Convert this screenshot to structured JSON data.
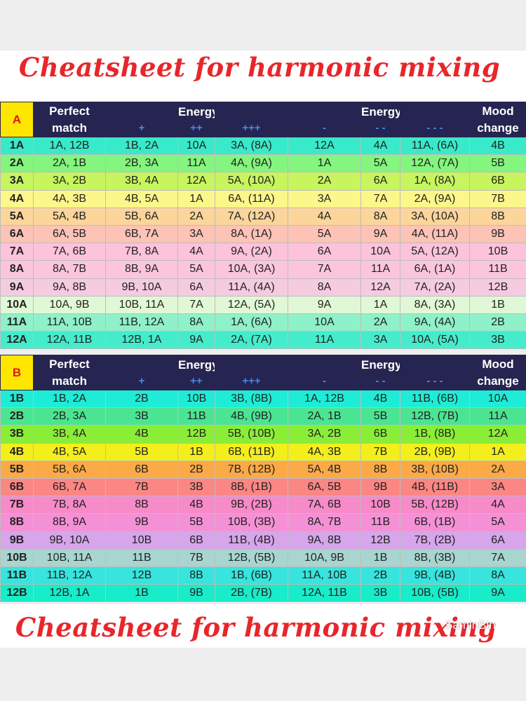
{
  "title_top": "Cheatsheet for harmonic mixing",
  "title_bottom": "Cheatsheet for harmonic mixing",
  "watermark": "SaminBin",
  "headers": {
    "perfect": [
      "Perfect",
      "match"
    ],
    "energy_boost": "Energy boost",
    "energy_drop": "Energy drop",
    "mood": [
      "Mood",
      "change"
    ],
    "boost_symbols": [
      "+",
      "++",
      "+++"
    ],
    "drop_symbols": [
      "-",
      "- -",
      "- - -"
    ]
  },
  "section_a": {
    "label": "A",
    "rows": [
      {
        "key": "1A",
        "perfect": "1A, 12B",
        "b1": "1B, 2A",
        "b2": "10A",
        "b3": "3A, (8A)",
        "d1": "12A",
        "d2": "4A",
        "d3": "11A, (6A)",
        "mood": "4B",
        "color": "#38eac9"
      },
      {
        "key": "2A",
        "perfect": "2A, 1B",
        "b1": "2B, 3A",
        "b2": "11A",
        "b3": "4A, (9A)",
        "d1": "1A",
        "d2": "5A",
        "d3": "12A, (7A)",
        "mood": "5B",
        "color": "#84f57e"
      },
      {
        "key": "3A",
        "perfect": "3A, 2B",
        "b1": "3B, 4A",
        "b2": "12A",
        "b3": "5A, (10A)",
        "d1": "2A",
        "d2": "6A",
        "d3": "1A, (8A)",
        "mood": "6B",
        "color": "#c6f55e"
      },
      {
        "key": "4A",
        "perfect": "4A, 3B",
        "b1": "4B, 5A",
        "b2": "1A",
        "b3": "6A, (11A)",
        "d1": "3A",
        "d2": "7A",
        "d3": "2A, (9A)",
        "mood": "7B",
        "color": "#fbf78a"
      },
      {
        "key": "5A",
        "perfect": "5A, 4B",
        "b1": "5B, 6A",
        "b2": "2A",
        "b3": "7A, (12A)",
        "d1": "4A",
        "d2": "8A",
        "d3": "3A, (10A)",
        "mood": "8B",
        "color": "#fbd59a"
      },
      {
        "key": "6A",
        "perfect": "6A, 5B",
        "b1": "6B, 7A",
        "b2": "3A",
        "b3": "8A, (1A)",
        "d1": "5A",
        "d2": "9A",
        "d3": "4A, (11A)",
        "mood": "9B",
        "color": "#fcc3b6"
      },
      {
        "key": "7A",
        "perfect": "7A, 6B",
        "b1": "7B, 8A",
        "b2": "4A",
        "b3": "9A, (2A)",
        "d1": "6A",
        "d2": "10A",
        "d3": "5A, (12A)",
        "mood": "10B",
        "color": "#fcc3da"
      },
      {
        "key": "8A",
        "perfect": "8A, 7B",
        "b1": "8B, 9A",
        "b2": "5A",
        "b3": "10A, (3A)",
        "d1": "7A",
        "d2": "11A",
        "d3": "6A, (1A)",
        "mood": "11B",
        "color": "#fbc6dc"
      },
      {
        "key": "9A",
        "perfect": "9A, 8B",
        "b1": "9B, 10A",
        "b2": "6A",
        "b3": "11A, (4A)",
        "d1": "8A",
        "d2": "12A",
        "d3": "7A, (2A)",
        "mood": "12B",
        "color": "#f5cbe0"
      },
      {
        "key": "10A",
        "perfect": "10A, 9B",
        "b1": "10B, 11A",
        "b2": "7A",
        "b3": "12A, (5A)",
        "d1": "9A",
        "d2": "1A",
        "d3": "8A, (3A)",
        "mood": "1B",
        "color": "#e1f8d6"
      },
      {
        "key": "11A",
        "perfect": "11A, 10B",
        "b1": "11B, 12A",
        "b2": "8A",
        "b3": "1A, (6A)",
        "d1": "10A",
        "d2": "2A",
        "d3": "9A, (4A)",
        "mood": "2B",
        "color": "#8ff1c9"
      },
      {
        "key": "12A",
        "perfect": "12A, 11B",
        "b1": "12B, 1A",
        "b2": "9A",
        "b3": "2A, (7A)",
        "d1": "11A",
        "d2": "3A",
        "d3": "10A, (5A)",
        "mood": "3B",
        "color": "#45eccc"
      }
    ]
  },
  "section_b": {
    "label": "B",
    "rows": [
      {
        "key": "1B",
        "perfect": "1B, 2A",
        "b1": "2B",
        "b2": "10B",
        "b3": "3B, (8B)",
        "d1": "1A, 12B",
        "d2": "4B",
        "d3": "11B, (6B)",
        "mood": "10A",
        "color": "#1fecd6"
      },
      {
        "key": "2B",
        "perfect": "2B, 3A",
        "b1": "3B",
        "b2": "11B",
        "b3": "4B, (9B)",
        "d1": "2A, 1B",
        "d2": "5B",
        "d3": "12B, (7B)",
        "mood": "11A",
        "color": "#4ae592"
      },
      {
        "key": "3B",
        "perfect": "3B, 4A",
        "b1": "4B",
        "b2": "12B",
        "b3": "5B, (10B)",
        "d1": "3A, 2B",
        "d2": "6B",
        "d3": "1B, (8B)",
        "mood": "12A",
        "color": "#8aee37"
      },
      {
        "key": "4B",
        "perfect": "4B, 5A",
        "b1": "5B",
        "b2": "1B",
        "b3": "6B, (11B)",
        "d1": "4A, 3B",
        "d2": "7B",
        "d3": "2B, (9B)",
        "mood": "1A",
        "color": "#f3ef1d"
      },
      {
        "key": "5B",
        "perfect": "5B, 6A",
        "b1": "6B",
        "b2": "2B",
        "b3": "7B, (12B)",
        "d1": "5A, 4B",
        "d2": "8B",
        "d3": "3B, (10B)",
        "mood": "2A",
        "color": "#fbaa47"
      },
      {
        "key": "6B",
        "perfect": "6B, 7A",
        "b1": "7B",
        "b2": "3B",
        "b3": "8B, (1B)",
        "d1": "6A, 5B",
        "d2": "9B",
        "d3": "4B, (11B)",
        "mood": "3A",
        "color": "#fb8784"
      },
      {
        "key": "7B",
        "perfect": "7B, 8A",
        "b1": "8B",
        "b2": "4B",
        "b3": "9B, (2B)",
        "d1": "7A, 6B",
        "d2": "10B",
        "d3": "5B, (12B)",
        "mood": "4A",
        "color": "#f78ac8"
      },
      {
        "key": "8B",
        "perfect": "8B, 9A",
        "b1": "9B",
        "b2": "5B",
        "b3": "10B, (3B)",
        "d1": "8A, 7B",
        "d2": "11B",
        "d3": "6B, (1B)",
        "mood": "5A",
        "color": "#f491d6"
      },
      {
        "key": "9B",
        "perfect": "9B, 10A",
        "b1": "10B",
        "b2": "6B",
        "b3": "11B, (4B)",
        "d1": "9A, 8B",
        "d2": "12B",
        "d3": "7B, (2B)",
        "mood": "6A",
        "color": "#d6a5ea"
      },
      {
        "key": "10B",
        "perfect": "10B, 11A",
        "b1": "11B",
        "b2": "7B",
        "b3": "12B, (5B)",
        "d1": "10A, 9B",
        "d2": "1B",
        "d3": "8B, (3B)",
        "mood": "7A",
        "color": "#a8d5cf"
      },
      {
        "key": "11B",
        "perfect": "11B, 12A",
        "b1": "12B",
        "b2": "8B",
        "b3": "1B, (6B)",
        "d1": "11A, 10B",
        "d2": "2B",
        "d3": "9B, (4B)",
        "mood": "8A",
        "color": "#38e4dd"
      },
      {
        "key": "12B",
        "perfect": "12B, 1A",
        "b1": "1B",
        "b2": "9B",
        "b3": "2B, (7B)",
        "d1": "12A, 11B",
        "d2": "3B",
        "d3": "10B, (5B)",
        "mood": "9A",
        "color": "#18ecc8"
      }
    ]
  }
}
